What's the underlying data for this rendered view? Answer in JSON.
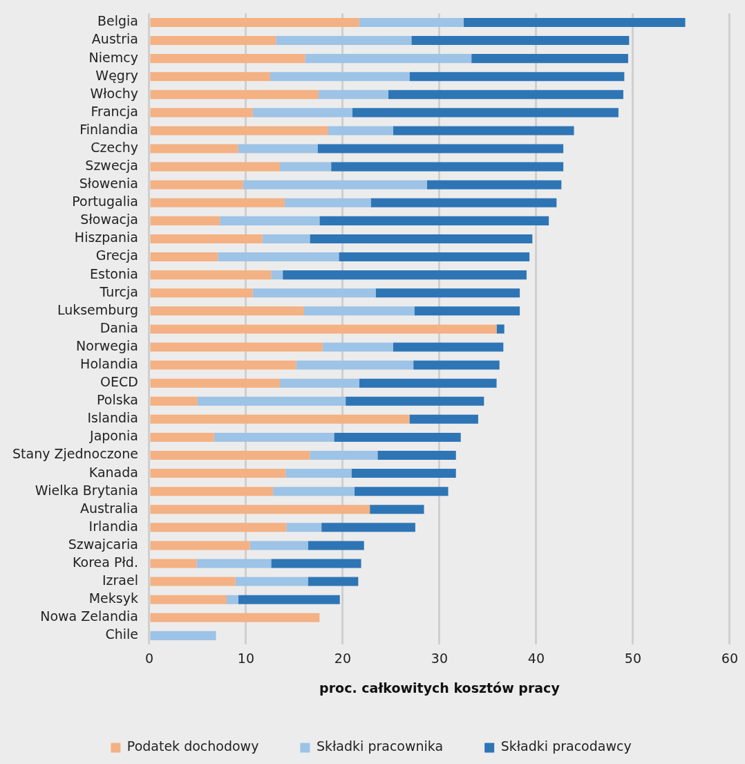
{
  "chart_data": {
    "type": "bar",
    "orientation": "horizontal",
    "stacked": true,
    "xlabel": "proc. całkowitych kosztów pracy",
    "categories": [
      "Belgia",
      "Austria",
      "Niemcy",
      "Węgry",
      "Włochy",
      "Francja",
      "Finlandia",
      "Czechy",
      "Szwecja",
      "Słowenia",
      "Portugalia",
      "Słowacja",
      "Hiszpania",
      "Grecja",
      "Estonia",
      "Turcja",
      "Luksemburg",
      "Dania",
      "Norwegia",
      "Holandia",
      "OECD",
      "Polska",
      "Islandia",
      "Japonia",
      "Stany Zjednoczone",
      "Kanada",
      "Wielka Brytania",
      "Australia",
      "Irlandia",
      "Szwajcaria",
      "Korea Płd.",
      "Izrael",
      "Meksyk",
      "Nowa Zelandia",
      "Chile"
    ],
    "series": [
      {
        "name": "Podatek dochodowy",
        "color": "#f4b183",
        "values": [
          21.7,
          13.1,
          16.1,
          12.5,
          17.5,
          10.7,
          18.5,
          9.2,
          13.5,
          9.7,
          14.0,
          7.3,
          11.7,
          7.1,
          12.6,
          10.7,
          16.0,
          35.9,
          17.9,
          15.2,
          13.5,
          5.0,
          26.9,
          6.7,
          16.6,
          14.1,
          12.8,
          22.8,
          14.2,
          10.4,
          4.9,
          8.9,
          8.0,
          17.6,
          0
        ]
      },
      {
        "name": "Składki pracownika",
        "color": "#9dc3e6",
        "values": [
          10.8,
          14.0,
          17.2,
          14.4,
          7.2,
          10.3,
          6.7,
          8.2,
          5.3,
          19.0,
          8.9,
          10.3,
          4.9,
          12.5,
          1.2,
          12.7,
          11.4,
          0,
          7.3,
          12.1,
          8.2,
          15.3,
          0,
          12.4,
          7.0,
          6.8,
          8.4,
          0,
          3.6,
          6.0,
          7.7,
          7.5,
          1.2,
          0,
          6.9
        ]
      },
      {
        "name": "Składki pracodawcy",
        "color": "#2e75b6",
        "values": [
          22.9,
          22.5,
          16.2,
          22.2,
          24.3,
          27.5,
          18.7,
          25.4,
          24.0,
          13.9,
          19.2,
          23.7,
          23.0,
          19.7,
          25.2,
          14.9,
          10.9,
          0.8,
          11.4,
          8.9,
          14.2,
          14.3,
          7.1,
          13.1,
          8.1,
          10.8,
          9.7,
          5.6,
          9.7,
          5.8,
          9.3,
          5.2,
          10.5,
          0,
          0
        ]
      }
    ],
    "xlim": [
      0,
      60
    ],
    "xticks": [
      0,
      10,
      20,
      30,
      40,
      50,
      60
    ],
    "grid": "x",
    "legend": "bottom"
  }
}
